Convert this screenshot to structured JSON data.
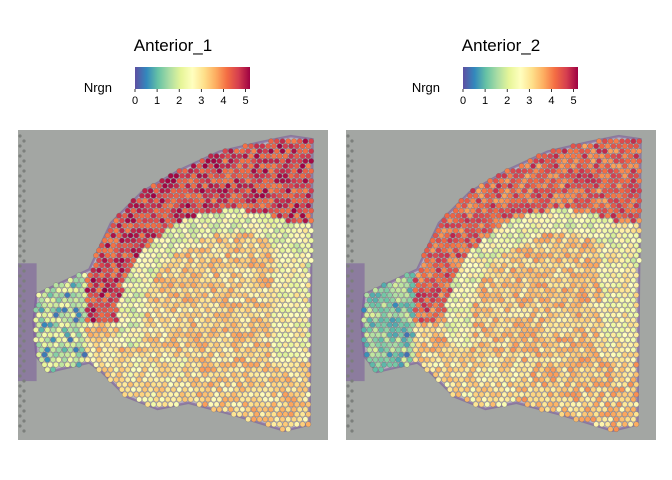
{
  "figure": {
    "panels": [
      {
        "title": "Anterior_1"
      },
      {
        "title": "Anterior_2"
      }
    ]
  },
  "chart_data": [
    {
      "type": "heatmap",
      "title": "Anterior_1",
      "legend_title": "Nrgn",
      "color_scale": "Spectral (reversed)",
      "colorbar_ticks": [
        0,
        1,
        2,
        3,
        4,
        5
      ],
      "value_range": [
        0,
        5.2
      ],
      "legend_placement": "top",
      "background": "tissue-image",
      "grid": false,
      "description_values": {
        "cortex_band": 4.6,
        "striatum": 3.2,
        "olfactory_bulb": 1.8,
        "white_matter_band": 2.3
      }
    },
    {
      "type": "heatmap",
      "title": "Anterior_2",
      "legend_title": "Nrgn",
      "color_scale": "Spectral (reversed)",
      "colorbar_ticks": [
        0,
        1,
        2,
        3,
        4,
        5
      ],
      "value_range": [
        0,
        5.2
      ],
      "legend_placement": "top",
      "background": "tissue-image",
      "grid": false,
      "description_values": {
        "cortex_band": 4.3,
        "striatum": 3.3,
        "olfactory_bulb": 1.4,
        "white_matter_band": 2.4
      }
    }
  ],
  "colors": {
    "spectral_stops": [
      "#5e4fa2",
      "#3288bd",
      "#66c2a5",
      "#abdda4",
      "#e6f598",
      "#ffffbf",
      "#fee08b",
      "#fdae61",
      "#f46d43",
      "#d53e4f",
      "#9e0142"
    ],
    "tissue_background": "#a3a6a3",
    "tissue_stain": "#7a5a9a"
  }
}
